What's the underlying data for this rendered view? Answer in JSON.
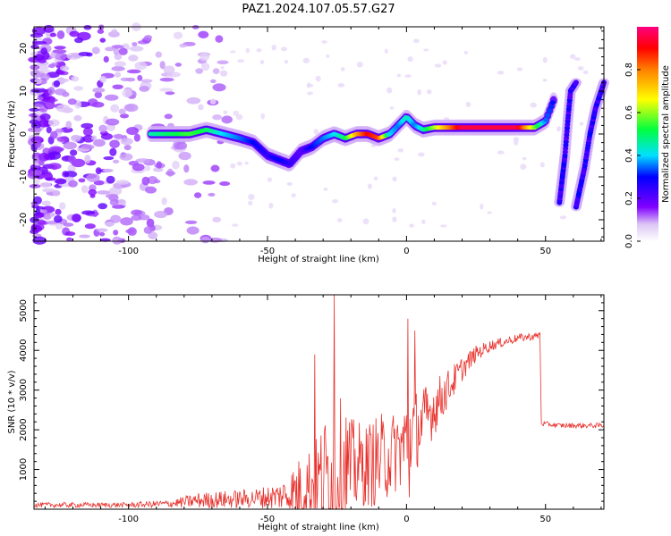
{
  "title": "PAZ1.2024.107.05.57.G27",
  "chart_data": [
    {
      "type": "heatmap",
      "xlabel": "Height of straight line (km)",
      "ylabel": "Frequency (Hz)",
      "xlim": [
        -134,
        71
      ],
      "ylim": [
        -25,
        25
      ],
      "xticks": [
        -100,
        -50,
        0,
        50
      ],
      "yticks": [
        -20,
        -10,
        0,
        10,
        20
      ],
      "colorbar": {
        "label": "Normalized spectral amplitude",
        "range": [
          0,
          1
        ],
        "ticks": [
          "0.0",
          "0.2",
          "0.4",
          "0.6",
          "0.8"
        ],
        "colormap": "white-purple-blue-cyan-green-yellow-red"
      },
      "ridge": {
        "x": [
          -92,
          -85,
          -78,
          -72,
          -66,
          -60,
          -55,
          -50,
          -46,
          -42,
          -38,
          -34,
          -30,
          -26,
          -22,
          -18,
          -14,
          -10,
          -6,
          -3,
          0,
          3,
          6,
          10,
          20,
          30,
          40,
          46,
          50,
          53
        ],
        "freq": [
          0,
          0,
          0,
          1,
          0,
          -1,
          -2,
          -5,
          -6,
          -7,
          -4,
          -3,
          -1,
          0,
          -1,
          0,
          0,
          -1,
          0,
          2,
          4,
          2,
          1,
          1.5,
          1.5,
          1.5,
          1.5,
          1.5,
          3,
          8
        ],
        "amp": [
          0.45,
          0.5,
          0.55,
          0.5,
          0.4,
          0.35,
          0.3,
          0.25,
          0.3,
          0.25,
          0.2,
          0.3,
          0.35,
          0.4,
          0.5,
          0.75,
          0.9,
          0.85,
          0.4,
          0.35,
          0.45,
          0.35,
          0.45,
          0.6,
          0.95,
          0.95,
          0.95,
          0.6,
          0.35,
          0.3
        ]
      },
      "steep_tracks": [
        {
          "x": [
            55,
            57,
            58,
            59,
            61
          ],
          "freq": [
            -16,
            -5,
            3,
            10,
            12
          ]
        },
        {
          "x": [
            61,
            64,
            66,
            68,
            71
          ],
          "freq": [
            -17,
            -8,
            0,
            6,
            12
          ]
        }
      ]
    },
    {
      "type": "line",
      "xlabel": "Height of straight line (km)",
      "ylabel": "SNR (10 * v/v)",
      "xlim": [
        -134,
        71
      ],
      "ylim": [
        0,
        5400
      ],
      "xticks": [
        -100,
        -50,
        0,
        50
      ],
      "yticks": [
        1000,
        2000,
        3000,
        4000,
        5000
      ],
      "color": "#e8312c",
      "envelope": {
        "x": [
          -134,
          -100,
          -85,
          -75,
          -65,
          -55,
          -45,
          -38,
          -32,
          -28,
          -25,
          -23,
          -20,
          -15,
          -10,
          -5,
          -1,
          0,
          1,
          5,
          10,
          15,
          20,
          25,
          30,
          35,
          40,
          47,
          48,
          48.5,
          55,
          65,
          71
        ],
        "base": [
          100,
          100,
          130,
          200,
          220,
          250,
          300,
          400,
          550,
          700,
          700,
          900,
          900,
          1000,
          1100,
          1300,
          1500,
          1600,
          1800,
          2000,
          2500,
          3000,
          3500,
          3900,
          4100,
          4200,
          4300,
          4350,
          4400,
          2150,
          2100,
          2100,
          2100
        ],
        "spread": [
          80,
          80,
          120,
          250,
          280,
          300,
          450,
          1100,
          1500,
          2200,
          2000,
          2400,
          1600,
          1300,
          1500,
          1300,
          1400,
          1500,
          1400,
          1200,
          900,
          600,
          400,
          250,
          180,
          150,
          130,
          120,
          120,
          80,
          80,
          80,
          80
        ]
      },
      "spikes": [
        {
          "x": -26,
          "y": 5400
        },
        {
          "x": -33,
          "y": 3900
        },
        {
          "x": 0.5,
          "y": 4800
        },
        {
          "x": 1,
          "y": 300
        },
        {
          "x": 3,
          "y": 4500
        }
      ]
    }
  ]
}
